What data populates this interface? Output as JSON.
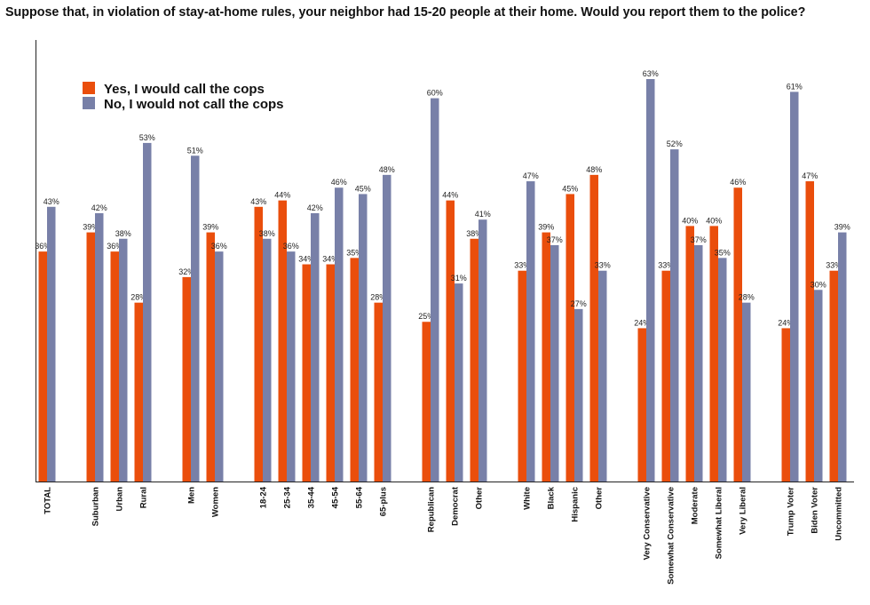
{
  "chart_data": {
    "type": "bar",
    "title": "Suppose that, in violation of stay-at-home rules, your neighbor had 15-20 people at their home. Would you report them to the police?",
    "xlabel": "",
    "ylabel": "",
    "ylim": [
      0,
      63
    ],
    "value_suffix": "%",
    "legend_position": "top-left",
    "colors": {
      "yes": "#ea4e0c",
      "no": "#7880a8"
    },
    "series": [
      {
        "name": "Yes, I would call the cops",
        "key": "yes"
      },
      {
        "name": "No, I would not call the cops",
        "key": "no"
      }
    ],
    "groups": [
      {
        "categories": [
          {
            "label": "TOTAL",
            "yes": 36,
            "no": 43
          }
        ]
      },
      {
        "categories": [
          {
            "label": "Suburban",
            "yes": 39,
            "no": 42
          },
          {
            "label": "Urban",
            "yes": 36,
            "no": 38
          },
          {
            "label": "Rural",
            "yes": 28,
            "no": 53
          }
        ]
      },
      {
        "categories": [
          {
            "label": "Men",
            "yes": 32,
            "no": 51
          },
          {
            "label": "Women",
            "yes": 39,
            "no": 36
          }
        ]
      },
      {
        "categories": [
          {
            "label": "18-24",
            "yes": 43,
            "no": 38
          },
          {
            "label": "25-34",
            "yes": 44,
            "no": 36
          },
          {
            "label": "35-44",
            "yes": 34,
            "no": 42
          },
          {
            "label": "45-54",
            "yes": 34,
            "no": 46
          },
          {
            "label": "55-64",
            "yes": 35,
            "no": 45
          },
          {
            "label": "65-plus",
            "yes": 28,
            "no": 48
          }
        ]
      },
      {
        "categories": [
          {
            "label": "Republican",
            "yes": 25,
            "no": 60
          },
          {
            "label": "Democrat",
            "yes": 44,
            "no": 31
          },
          {
            "label": "Other",
            "yes": 38,
            "no": 41
          }
        ]
      },
      {
        "categories": [
          {
            "label": "White",
            "yes": 33,
            "no": 47
          },
          {
            "label": "Black",
            "yes": 39,
            "no": 37
          },
          {
            "label": "Hispanic",
            "yes": 45,
            "no": 27
          },
          {
            "label": "Other",
            "yes": 48,
            "no": 33
          }
        ]
      },
      {
        "categories": [
          {
            "label": "Very Conservative",
            "yes": 24,
            "no": 63
          },
          {
            "label": "Somewhat Conservative",
            "yes": 33,
            "no": 52
          },
          {
            "label": "Moderate",
            "yes": 40,
            "no": 37
          },
          {
            "label": "Somewhat Liberal",
            "yes": 40,
            "no": 35
          },
          {
            "label": "Very Liberal",
            "yes": 46,
            "no": 28
          }
        ]
      },
      {
        "categories": [
          {
            "label": "Trump Voter",
            "yes": 24,
            "no": 61
          },
          {
            "label": "Biden Voter",
            "yes": 47,
            "no": 30
          },
          {
            "label": "Uncommitted",
            "yes": 33,
            "no": 39
          }
        ]
      }
    ]
  }
}
